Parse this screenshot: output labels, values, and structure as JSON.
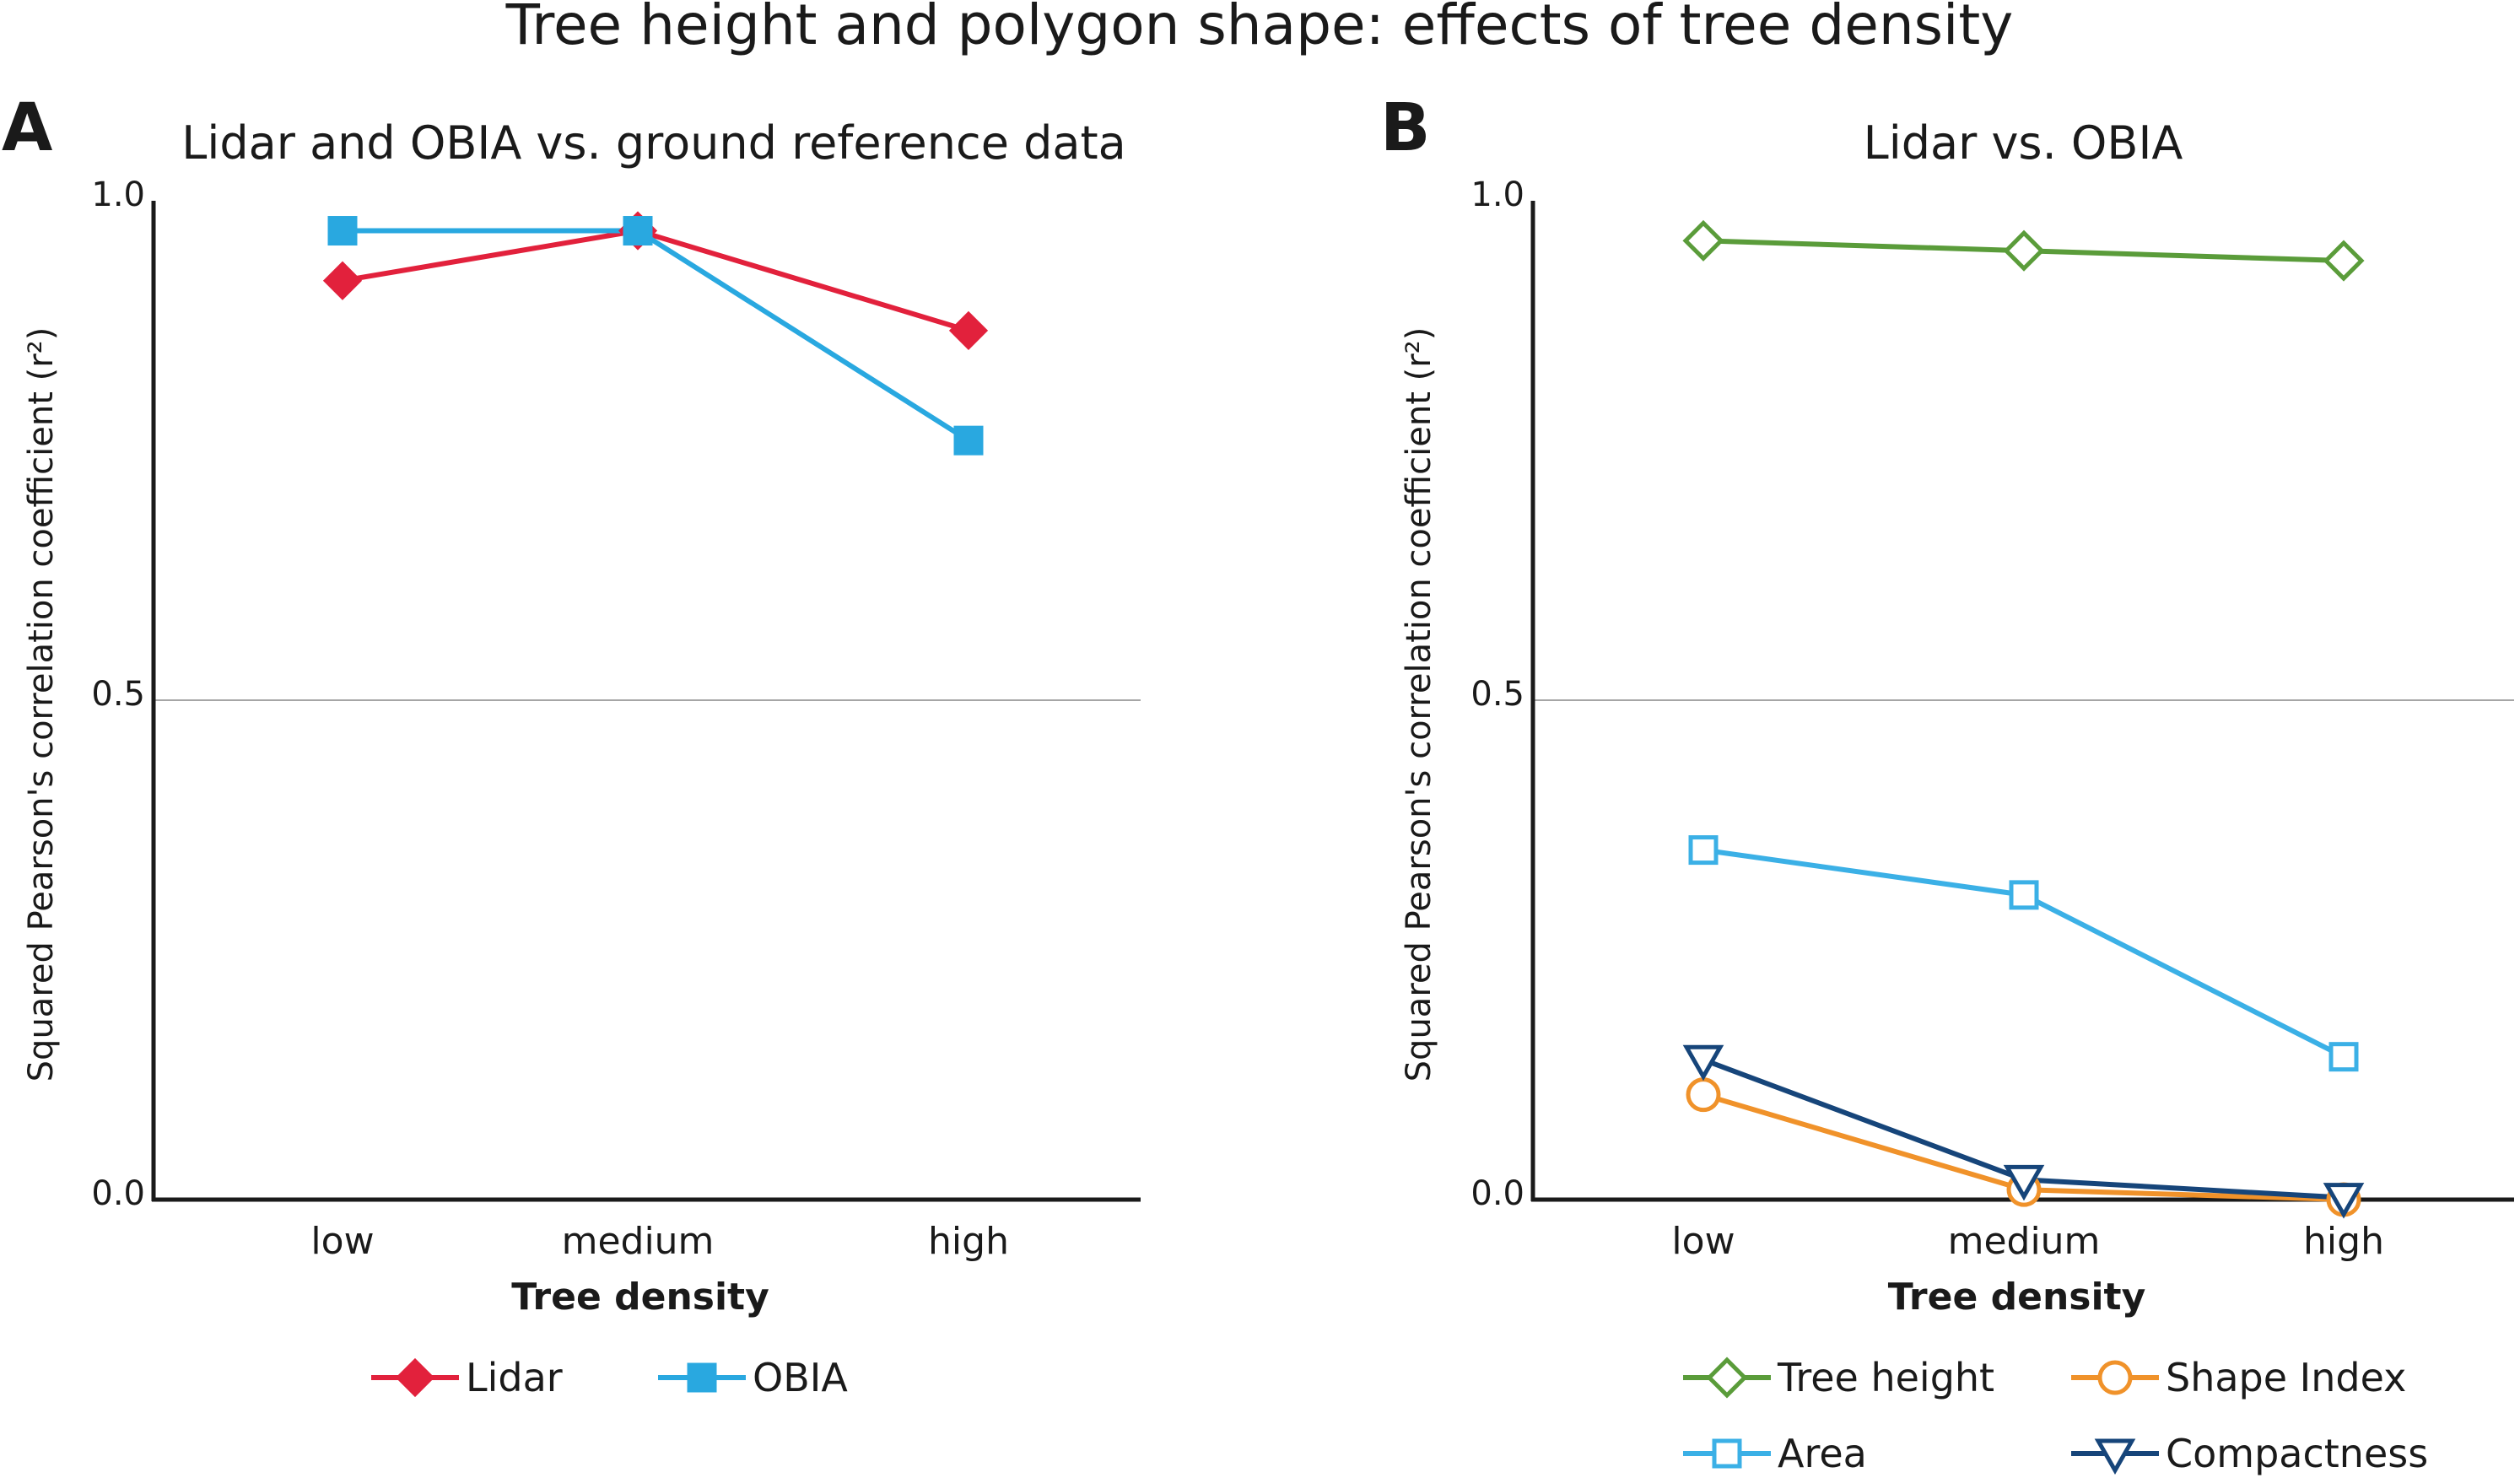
{
  "figure": {
    "title": "Tree height and polygon shape: effects of tree density"
  },
  "chart_data": [
    {
      "type": "line",
      "panel_letter": "A",
      "title": "Lidar and OBIA vs. ground reference data",
      "xlabel": "Tree density",
      "ylabel": "Squared Pearson's correlation coefficient (r²)",
      "categories": [
        "low",
        "medium",
        "high"
      ],
      "ylim": [
        0.0,
        1.0
      ],
      "yticks": [
        0.0,
        0.5,
        1.0
      ],
      "ytick_labels": [
        "0.0",
        "0.5",
        "1.0"
      ],
      "gridlines": [
        0.5
      ],
      "legend_position": "bottom",
      "series": [
        {
          "name": "Lidar",
          "values": [
            0.92,
            0.97,
            0.87
          ],
          "color": "#e2213c",
          "marker": "diamond",
          "filled": true
        },
        {
          "name": "OBIA",
          "values": [
            0.97,
            0.97,
            0.76
          ],
          "color": "#29a8e0",
          "marker": "square",
          "filled": true
        }
      ]
    },
    {
      "type": "line",
      "panel_letter": "B",
      "title": "Lidar vs. OBIA",
      "xlabel": "Tree density",
      "ylabel": "Squared Pearson's correlation coefficient (r²)",
      "categories": [
        "low",
        "medium",
        "high"
      ],
      "ylim": [
        0.0,
        1.0
      ],
      "yticks": [
        0.0,
        0.5,
        1.0
      ],
      "ytick_labels": [
        "0.0",
        "0.5",
        "1.0"
      ],
      "gridlines": [
        0.5
      ],
      "legend_position": "bottom",
      "series": [
        {
          "name": "Tree height",
          "values": [
            0.96,
            0.95,
            0.94
          ],
          "color": "#5a9c3a",
          "marker": "diamond",
          "filled": false
        },
        {
          "name": "Shape Index",
          "values": [
            0.105,
            0.01,
            0.0
          ],
          "color": "#f0922a",
          "marker": "circle",
          "filled": false
        },
        {
          "name": "Area",
          "values": [
            0.35,
            0.305,
            0.143
          ],
          "color": "#3bb0e6",
          "marker": "square",
          "filled": false
        },
        {
          "name": "Compactness",
          "values": [
            0.14,
            0.02,
            0.002
          ],
          "color": "#16457a",
          "marker": "triangle-down",
          "filled": false
        }
      ]
    }
  ]
}
